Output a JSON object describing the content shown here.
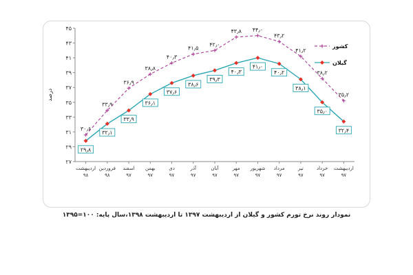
{
  "chart_data": {
    "type": "line",
    "title": "",
    "caption": "نمودار روند نرخ تورم کشور و گیلان از اردیبهشت ۱۳۹۷ تا اردیبهشت ۱۳۹۸،سال پایه: ۱۰۰=۱۳۹۵",
    "ylabel": "درصد",
    "xlabel": "",
    "ylim": [
      27,
      45
    ],
    "yticks": [
      27,
      29,
      31,
      33,
      35,
      37,
      39,
      41,
      43,
      45
    ],
    "ytick_labels": [
      "۲۷",
      "۲۹",
      "۳۱",
      "۳۳",
      "۳۵",
      "۳۷",
      "۳۹",
      "۴۱",
      "۴۳",
      "۴۵"
    ],
    "grid": false,
    "legend_placement": "top-right",
    "categories": [
      {
        "month": "اردیبهشت",
        "year": "۹۸"
      },
      {
        "month": "فروردین",
        "year": "۹۸"
      },
      {
        "month": "اسفند",
        "year": "۹۷"
      },
      {
        "month": "بهمن",
        "year": "۹۷"
      },
      {
        "month": "دی",
        "year": "۹۷"
      },
      {
        "month": "آذر",
        "year": "۹۷"
      },
      {
        "month": "آبان",
        "year": "۹۷"
      },
      {
        "month": "مهر",
        "year": "۹۷"
      },
      {
        "month": "شهریور",
        "year": "۹۷"
      },
      {
        "month": "مرداد",
        "year": "۹۷"
      },
      {
        "month": "تیر",
        "year": "۹۷"
      },
      {
        "month": "خرداد",
        "year": "۹۷"
      },
      {
        "month": "اردیبهشت",
        "year": "۹۷"
      }
    ],
    "series": [
      {
        "name": "کشور",
        "color": "#b0499b",
        "dash": true,
        "marker": "plus",
        "values": [
          30.6,
          33.9,
          36.9,
          38.8,
          40.3,
          41.5,
          42.0,
          43.8,
          44.0,
          43.2,
          41.2,
          38.2,
          35.2
        ],
        "labels": [
          "۳۰٫۶",
          "۳۳٫۹",
          "۳۶٫۹",
          "۳۸٫۸",
          "۴۰٫۳",
          "۴۱٫۵",
          "۴۲٫۰",
          "۴۳٫۸",
          "۴۴٫۰",
          "۴۳٫۲",
          "۴۱٫۲",
          "۳۸٫۲",
          "۳۵٫۲"
        ]
      },
      {
        "name": "گیلان",
        "color": "#2aa6b3",
        "marker": "diamond",
        "marker_color": "#e2322a",
        "values": [
          29.8,
          32.1,
          33.9,
          36.1,
          37.6,
          38.6,
          39.3,
          40.3,
          41.0,
          40.2,
          38.1,
          35.0,
          32.4
        ],
        "labels": [
          "۲۹٫۸",
          "۳۲٫۱",
          "۳۳٫۹",
          "۳۶٫۱",
          "۳۷٫۶",
          "۳۸٫۶",
          "۳۹٫۳",
          "۴۰٫۳",
          "۴۱٫۰",
          "۴۰٫۲",
          "۳۸٫۱",
          "۳۵٫۰",
          "۳۲٫۴"
        ]
      }
    ]
  }
}
